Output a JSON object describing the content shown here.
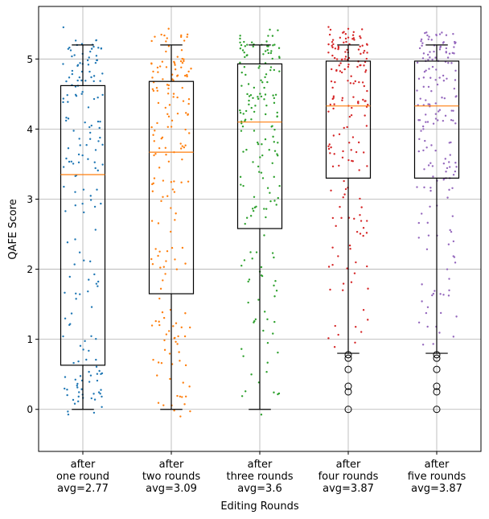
{
  "chart_data": {
    "type": "box",
    "xlabel": "Editing Rounds",
    "ylabel": "QAFE Score",
    "ylim": [
      -0.6,
      5.75
    ],
    "yticks": [
      0,
      1,
      2,
      3,
      4,
      5
    ],
    "grid": true,
    "categories": [
      {
        "label_lines": [
          "after",
          "one round",
          "avg=2.77"
        ],
        "color": "#1f77b4",
        "whisker_low": 0.0,
        "q1": 0.63,
        "median": 3.35,
        "q3": 4.62,
        "whisker_high": 5.2,
        "outliers": []
      },
      {
        "label_lines": [
          "after",
          "two rounds",
          "avg=3.09"
        ],
        "color": "#ff7f0e",
        "whisker_low": 0.0,
        "q1": 1.65,
        "median": 3.67,
        "q3": 4.68,
        "whisker_high": 5.2,
        "outliers": []
      },
      {
        "label_lines": [
          "after",
          "three rounds",
          "avg=3.6"
        ],
        "color": "#2ca02c",
        "whisker_low": 0.0,
        "q1": 2.58,
        "median": 4.1,
        "q3": 4.93,
        "whisker_high": 5.2,
        "outliers": []
      },
      {
        "label_lines": [
          "after",
          "four rounds",
          "avg=3.87"
        ],
        "color": "#d62728",
        "whisker_low": 0.8,
        "q1": 3.3,
        "median": 4.33,
        "q3": 4.97,
        "whisker_high": 5.2,
        "outliers": [
          0.0,
          0.25,
          0.33,
          0.57,
          0.73,
          0.78
        ]
      },
      {
        "label_lines": [
          "after",
          "five rounds",
          "avg=3.87"
        ],
        "color": "#9467bd",
        "whisker_low": 0.8,
        "q1": 3.3,
        "median": 4.33,
        "q3": 4.97,
        "whisker_high": 5.2,
        "outliers": [
          0.0,
          0.25,
          0.33,
          0.57,
          0.73,
          0.78
        ]
      }
    ],
    "median_color": "#ff7f0e",
    "jitter_points_per_box": 180
  }
}
